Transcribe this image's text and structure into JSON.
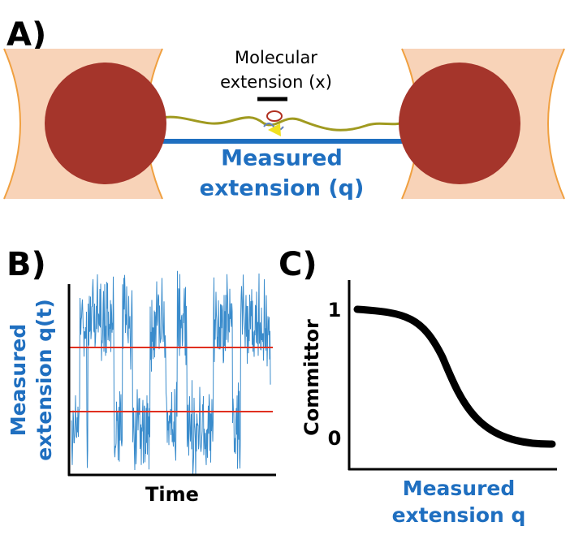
{
  "panel_a": {
    "label": "A)",
    "molecular_line1": "Molecular",
    "molecular_line2": "extension (x)",
    "measured_line1": "Measured",
    "measured_line2": "extension (q)"
  },
  "panel_b": {
    "label": "B)",
    "ylabel_line1": "Measured",
    "ylabel_line2": "extension q(t)",
    "xlabel": "Time"
  },
  "panel_c": {
    "label": "C)",
    "ylabel": "Committor",
    "ytick_top": "1",
    "ytick_bottom": "0",
    "xlabel_line1": "Measured",
    "xlabel_line2": "extension q"
  }
}
